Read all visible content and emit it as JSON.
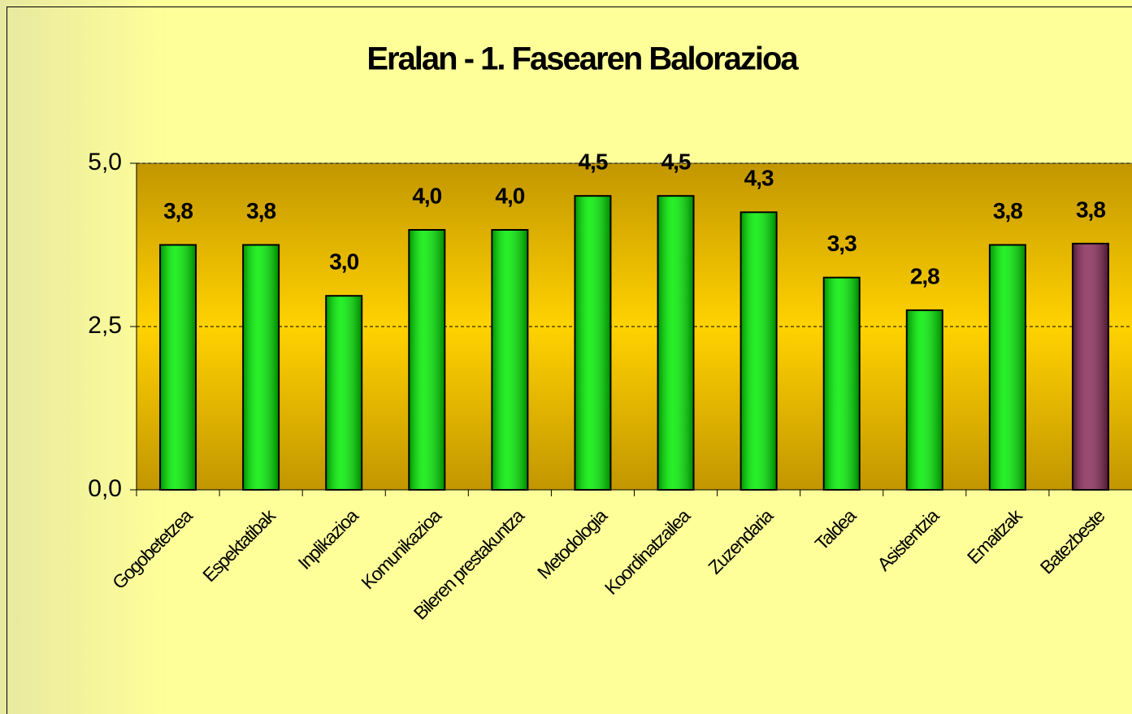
{
  "chart_data": {
    "type": "bar",
    "title": "Eralan - 1. Fasearen Balorazioa",
    "categories": [
      "Gogobetetzea",
      "Espektatibak",
      "Inplikazioa",
      "Komunikazioa",
      "Bileren prestakuntza",
      "Metodologia",
      "Koordinatzailea",
      "Zuzendaria",
      "Taldea",
      "Asistentzia",
      "Emaitzak",
      "Batezbeste"
    ],
    "values": [
      3.75,
      3.75,
      2.97,
      3.98,
      3.98,
      4.5,
      4.5,
      4.25,
      3.25,
      2.75,
      3.75,
      3.77
    ],
    "value_labels": [
      "3,8",
      "3,8",
      "3,0",
      "4,0",
      "4,0",
      "4,5",
      "4,5",
      "4,3",
      "3,3",
      "2,8",
      "3,8",
      "3,8"
    ],
    "colors": [
      "#00ee00",
      "#00ee00",
      "#00ee00",
      "#00ee00",
      "#00ee00",
      "#00ee00",
      "#00ee00",
      "#00ee00",
      "#00ee00",
      "#00ee00",
      "#00ee00",
      "#8a2a5a"
    ],
    "ylim": [
      0,
      5
    ],
    "yticks": [
      {
        "value": 0,
        "label": "0,0"
      },
      {
        "value": 2.5,
        "label": "2,5"
      },
      {
        "value": 5,
        "label": "5,0"
      }
    ],
    "grid": true
  }
}
